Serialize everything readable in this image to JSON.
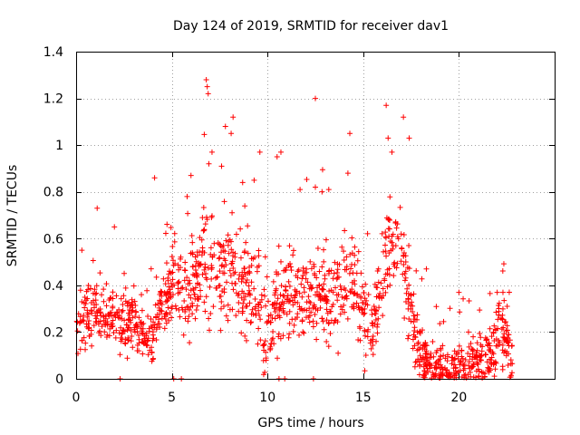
{
  "chart_data": {
    "type": "scatter",
    "title": "Day 124 of 2019, SRMTID for receiver dav1",
    "xlabel": "GPS time / hours",
    "ylabel": "SRMTID / TECUs",
    "xlim": [
      0,
      25
    ],
    "ylim": [
      0,
      1.4
    ],
    "xticks": [
      0,
      5,
      10,
      15,
      20
    ],
    "yticks": [
      0,
      0.2,
      0.4,
      0.6,
      0.8,
      1,
      1.2,
      1.4
    ],
    "grid": true,
    "marker": "+",
    "color": "#ff0000",
    "series": [
      {
        "name": "SRMTID",
        "envelope": [
          [
            0,
            0.15,
            0.3
          ],
          [
            0.5,
            0.2,
            0.3
          ],
          [
            1,
            0.25,
            0.35
          ],
          [
            1.5,
            0.25,
            0.3
          ],
          [
            2,
            0.22,
            0.28
          ],
          [
            2.5,
            0.18,
            0.25
          ],
          [
            3,
            0.2,
            0.3
          ],
          [
            3.5,
            0.18,
            0.22
          ],
          [
            4,
            0.15,
            0.2
          ],
          [
            4.5,
            0.3,
            0.4
          ],
          [
            5,
            0.35,
            0.5
          ],
          [
            5.5,
            0.3,
            0.4
          ],
          [
            6,
            0.3,
            0.45
          ],
          [
            6.5,
            0.4,
            0.6
          ],
          [
            7,
            0.35,
            0.65
          ],
          [
            7.5,
            0.35,
            0.5
          ],
          [
            8,
            0.4,
            0.6
          ],
          [
            8.5,
            0.35,
            0.5
          ],
          [
            9,
            0.3,
            0.5
          ],
          [
            9.5,
            0.25,
            0.4
          ],
          [
            10,
            0.1,
            0.25
          ],
          [
            10.5,
            0.25,
            0.4
          ],
          [
            11,
            0.28,
            0.4
          ],
          [
            11.5,
            0.25,
            0.4
          ],
          [
            12,
            0.25,
            0.45
          ],
          [
            12.5,
            0.3,
            0.45
          ],
          [
            13,
            0.25,
            0.4
          ],
          [
            13.5,
            0.25,
            0.4
          ],
          [
            14,
            0.3,
            0.45
          ],
          [
            14.5,
            0.35,
            0.5
          ],
          [
            15,
            0.2,
            0.35
          ],
          [
            15.5,
            0.15,
            0.25
          ],
          [
            16,
            0.35,
            0.55
          ],
          [
            16.5,
            0.5,
            0.7
          ],
          [
            17,
            0.45,
            0.65
          ],
          [
            17.5,
            0.2,
            0.35
          ],
          [
            18,
            0.05,
            0.15
          ],
          [
            18.5,
            0.04,
            0.08
          ],
          [
            19,
            0.03,
            0.06
          ],
          [
            19.5,
            0.03,
            0.06
          ],
          [
            20,
            0.04,
            0.08
          ],
          [
            20.5,
            0.04,
            0.1
          ],
          [
            21,
            0.04,
            0.1
          ],
          [
            21.5,
            0.06,
            0.12
          ],
          [
            22,
            0.15,
            0.3
          ],
          [
            22.5,
            0.1,
            0.2
          ],
          [
            22.8,
            0.05,
            0.1
          ]
        ],
        "outliers": [
          [
            6.8,
            1.28
          ],
          [
            6.85,
            1.25
          ],
          [
            6.9,
            1.22
          ],
          [
            7.1,
            0.97
          ],
          [
            7.8,
            1.08
          ],
          [
            8.2,
            1.12
          ],
          [
            8.1,
            1.05
          ],
          [
            12.5,
            1.2
          ],
          [
            14.3,
            1.05
          ],
          [
            16.2,
            1.17
          ],
          [
            16.3,
            1.03
          ],
          [
            16.5,
            0.97
          ],
          [
            17.1,
            1.12
          ],
          [
            17.4,
            1.03
          ],
          [
            4.1,
            0.86
          ],
          [
            10.7,
            0.97
          ],
          [
            10.5,
            0.95
          ],
          [
            9.6,
            0.97
          ],
          [
            12.5,
            0.82
          ],
          [
            14.2,
            0.88
          ],
          [
            0.3,
            0.55
          ],
          [
            1.1,
            0.73
          ],
          [
            2.0,
            0.65
          ],
          [
            5.8,
            0.78
          ],
          [
            18.3,
            0.47
          ],
          [
            20.0,
            0.37
          ],
          [
            20.5,
            0.2
          ],
          [
            22.0,
            0.37
          ],
          [
            22.3,
            0.37
          ],
          [
            9.3,
            0.85
          ],
          [
            7.6,
            0.91
          ],
          [
            8.7,
            0.84
          ],
          [
            11.7,
            0.81
          ],
          [
            13.2,
            0.81
          ],
          [
            15.8,
            0.47
          ]
        ],
        "zero_markers": [
          2.3,
          5.1,
          5.5,
          10.6,
          10.9,
          12.4
        ]
      }
    ]
  }
}
